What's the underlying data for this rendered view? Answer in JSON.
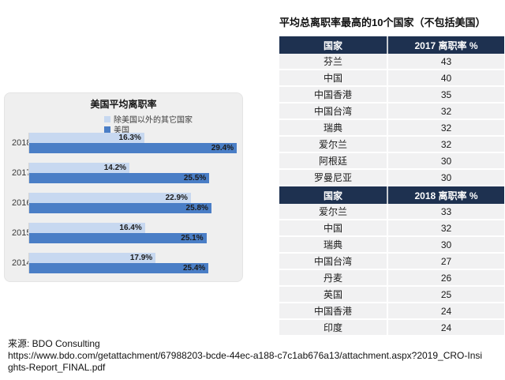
{
  "table_section": {
    "title": "平均总离职率最高的10个国家（不包括美国）",
    "header_bg": "#1e3150",
    "row_bg": "#f1f1f2",
    "tables": [
      {
        "columns": [
          "国家",
          "2017 离职率 %"
        ],
        "rows": [
          {
            "country": "芬兰",
            "value": "43"
          },
          {
            "country": "中国",
            "value": "40"
          },
          {
            "country": "中国香港",
            "value": "35"
          },
          {
            "country": "中国台湾",
            "value": "32"
          },
          {
            "country": "瑞典",
            "value": "32"
          },
          {
            "country": "爱尔兰",
            "value": "32"
          },
          {
            "country": "阿根廷",
            "value": "30"
          },
          {
            "country": "罗曼尼亚",
            "value": "30"
          }
        ]
      },
      {
        "columns": [
          "国家",
          "2018 离职率 %"
        ],
        "rows": [
          {
            "country": "爱尔兰",
            "value": "33"
          },
          {
            "country": "中国",
            "value": "32"
          },
          {
            "country": "瑞典",
            "value": "30"
          },
          {
            "country": "中国台湾",
            "value": "27"
          },
          {
            "country": "丹麦",
            "value": "26"
          },
          {
            "country": "英国",
            "value": "25"
          },
          {
            "country": "中国香港",
            "value": "24"
          },
          {
            "country": "印度",
            "value": "24"
          }
        ]
      }
    ]
  },
  "chart_data": {
    "type": "bar",
    "orientation": "horizontal",
    "title": "美国平均离职率",
    "categories": [
      "2018",
      "2017",
      "2016",
      "2015",
      "2014"
    ],
    "series": [
      {
        "name": "除美国以外的其它国家",
        "color": "#c7d8f0",
        "values": [
          16.3,
          14.2,
          22.9,
          16.4,
          17.9
        ]
      },
      {
        "name": "美国",
        "color": "#4a7ec6",
        "values": [
          29.4,
          25.5,
          25.8,
          25.1,
          25.4
        ]
      }
    ],
    "value_suffix": "%",
    "xlim": [
      0,
      30.5
    ],
    "legend_position": "top-left-of-plot",
    "grid": false,
    "panel_bg": "#efefef"
  },
  "source": {
    "label": "来源: BDO Consulting",
    "url": "https://www.bdo.com/getattachment/67988203-bcde-44ec-a188-c7c1ab676a13/attachment.aspx?2019_CRO-Insights-Report_FINAL.pdf"
  },
  "colors": {
    "table_header_bg": "#1e3150",
    "table_row_bg": "#f1f1f2",
    "bar_other": "#c7d8f0",
    "bar_us": "#4a7ec6",
    "chart_panel_bg": "#efefef",
    "background": "#ffffff"
  }
}
